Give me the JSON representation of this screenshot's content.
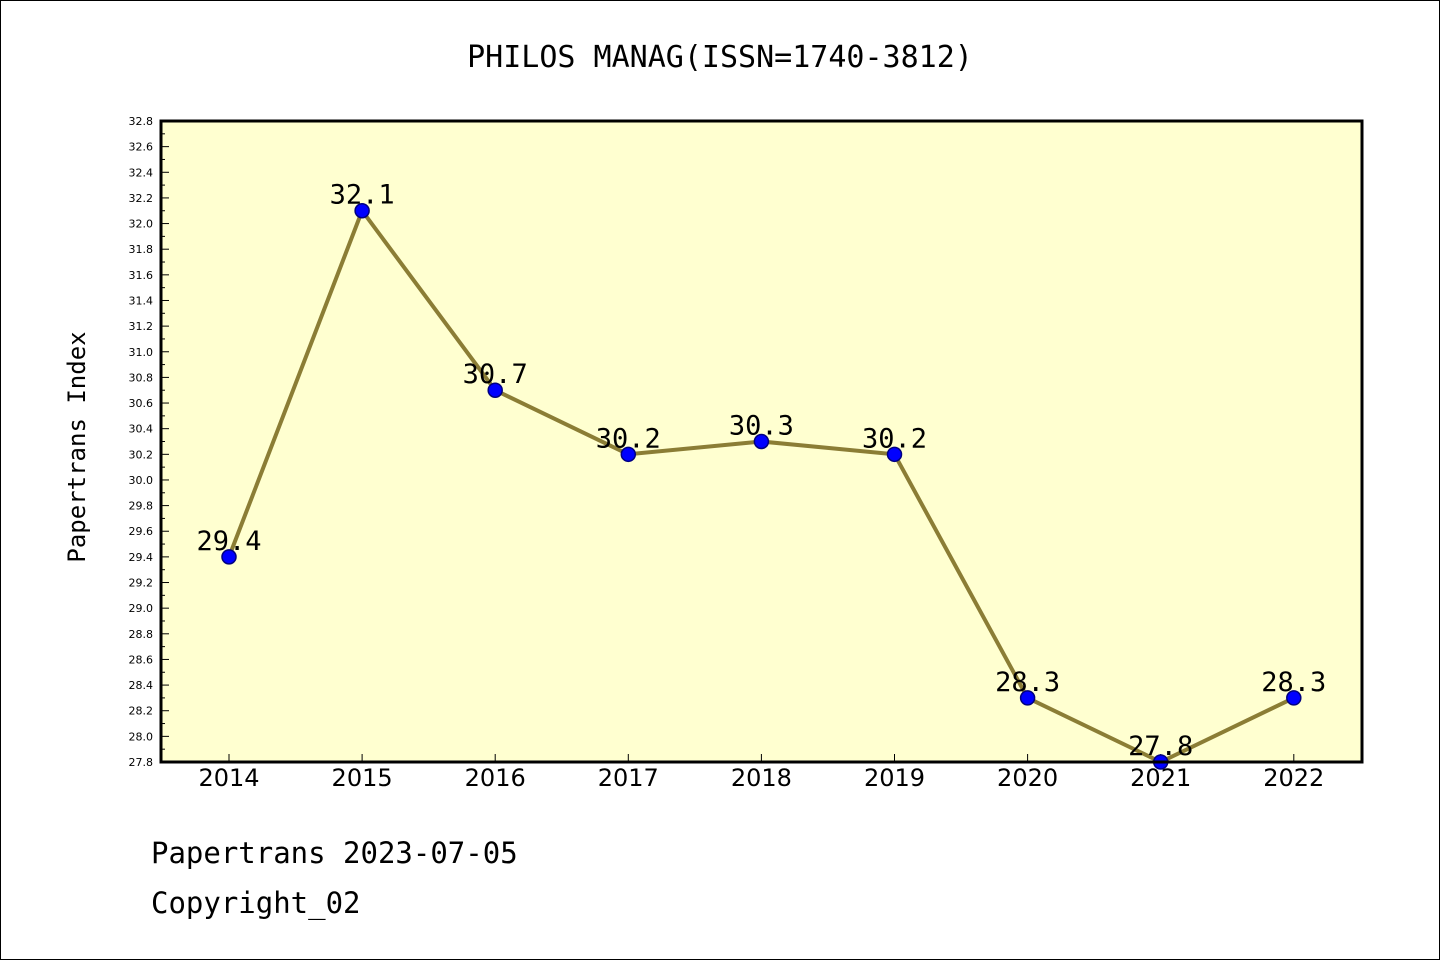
{
  "chart_data": {
    "type": "line",
    "title": "PHILOS MANAG(ISSN=1740-3812)",
    "ylabel": "Papertrans Index",
    "xlabel": "",
    "categories": [
      "2014",
      "2015",
      "2016",
      "2017",
      "2018",
      "2019",
      "2020",
      "2021",
      "2022"
    ],
    "series": [
      {
        "values": [
          29.4,
          32.1,
          30.7,
          30.2,
          30.3,
          30.2,
          28.3,
          27.8,
          28.3
        ]
      }
    ],
    "data_labels": [
      "29.4",
      "32.1",
      "30.7",
      "30.2",
      "30.3",
      "30.2",
      "28.3",
      "27.8",
      "28.3"
    ],
    "ylim": [
      27.8,
      32.8
    ],
    "ytick_step": 0.2,
    "ytick_labels": [
      "27.8",
      "28.0",
      "28.2",
      "28.4",
      "28.6",
      "28.8",
      "29.0",
      "29.2",
      "29.4",
      "29.6",
      "29.8",
      "30.0",
      "30.2",
      "30.4",
      "30.6",
      "30.8",
      "31.0",
      "31.2",
      "31.4",
      "31.6",
      "31.8",
      "32.0",
      "32.2",
      "32.4",
      "32.6",
      "32.8"
    ],
    "grid": false,
    "colors": {
      "plot_background": "#ffffd0",
      "line": "#8b7d35",
      "marker": "#0000ff",
      "marker_edge": "#000080"
    }
  },
  "footer": {
    "line1": "Papertrans 2023-07-05",
    "line2": "Copyright_02"
  }
}
